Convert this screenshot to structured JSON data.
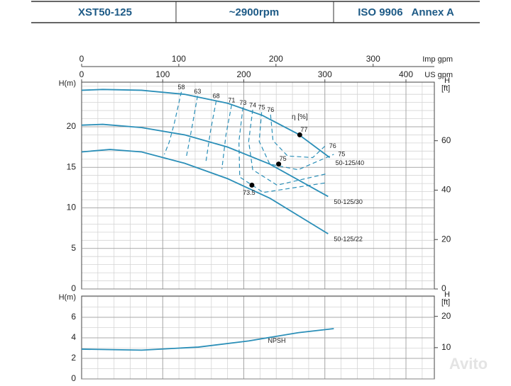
{
  "header": {
    "cells": [
      "XST50-125",
      "~2900rpm",
      "ISO 9906   Annex A"
    ]
  },
  "watermark": "Avito",
  "chart_data": [
    {
      "type": "line",
      "ylabel": "H(m)",
      "y2label": [
        "H",
        "[ft]"
      ],
      "xlabel": "US gpm",
      "x2label": "Imp gpm",
      "xlim": [
        0,
        435
      ],
      "xticks": [
        0,
        100,
        200,
        300,
        400
      ],
      "x2lim": [
        0,
        363
      ],
      "x2ticks": [
        0,
        100,
        200,
        300
      ],
      "ylim": [
        0,
        25.5
      ],
      "yticks": [
        0,
        5,
        10,
        15,
        20
      ],
      "y2lim": [
        0,
        83.7
      ],
      "y2ticks": [
        0,
        20,
        40,
        60
      ],
      "xgrid": [
        20,
        40,
        60,
        80,
        100,
        120,
        140,
        160,
        180,
        200,
        220,
        240,
        260,
        280,
        300,
        320,
        340,
        360,
        380,
        400,
        420
      ],
      "ygrid": [
        1,
        2,
        3,
        4,
        5,
        6,
        7,
        8,
        9,
        10,
        11,
        12,
        13,
        14,
        15,
        16,
        17,
        18,
        19,
        20,
        21,
        22,
        23,
        24,
        25
      ],
      "color": "#2b8fb8",
      "series": [
        {
          "name": "50-125/40",
          "x": [
            0,
            26,
            74,
            127,
            180,
            223,
            267,
            306
          ],
          "values": [
            24.5,
            24.6,
            24.5,
            24.0,
            22.9,
            21.4,
            19.1,
            16.2
          ]
        },
        {
          "name": "50-125/30",
          "x": [
            0,
            26,
            74,
            127,
            180,
            232,
            304
          ],
          "values": [
            20.2,
            20.3,
            19.9,
            19.0,
            17.5,
            15.4,
            11.4
          ]
        },
        {
          "name": "50-125/22",
          "x": [
            0,
            35,
            74,
            127,
            180,
            232,
            304
          ],
          "values": [
            16.9,
            17.2,
            16.9,
            15.5,
            13.6,
            11.2,
            6.8
          ]
        }
      ],
      "efficiency_label": "η [%]",
      "points": [
        {
          "label": "77",
          "x": 269,
          "y": 19.0
        },
        {
          "label": "75",
          "x": 243,
          "y": 15.4
        },
        {
          "label": "73.5",
          "x": 210,
          "y": 12.8
        }
      ],
      "efficiency_contours": [
        {
          "label": "58",
          "label_at": [
            "start"
          ],
          "x": [
            123,
            114,
            108,
            102
          ],
          "values": [
            24.3,
            20.3,
            18.1,
            16.6
          ]
        },
        {
          "label": "63",
          "label_at": [
            "start"
          ],
          "x": [
            143,
            136,
            129
          ],
          "values": [
            23.8,
            19.9,
            16.2
          ]
        },
        {
          "label": "68",
          "label_at": [
            "start"
          ],
          "x": [
            166,
            159,
            153
          ],
          "values": [
            23.2,
            19.5,
            15.5
          ]
        },
        {
          "label": "71",
          "label_at": [
            "start"
          ],
          "x": [
            185,
            178,
            173
          ],
          "values": [
            22.7,
            19.0,
            14.8
          ]
        },
        {
          "label": "73",
          "label_at": [
            "start"
          ],
          "x": [
            199,
            194,
            195,
            224,
            302
          ],
          "values": [
            22.4,
            18.2,
            13.8,
            11.9,
            13.1
          ]
        },
        {
          "label": "74",
          "label_at": [
            "start"
          ],
          "x": [
            211,
            206,
            211,
            241,
            302
          ],
          "values": [
            22.1,
            18.2,
            14.7,
            12.8,
            14.2
          ]
        },
        {
          "label": "75",
          "label_at": [
            "start",
            "end"
          ],
          "x": [
            222,
            219,
            232,
            267,
            311
          ],
          "values": [
            21.8,
            18.2,
            15.4,
            14.7,
            16.6
          ]
        },
        {
          "label": "76",
          "label_at": [
            "start",
            "end"
          ],
          "x": [
            233,
            236,
            254,
            285,
            300
          ],
          "values": [
            21.5,
            18.3,
            16.4,
            16.2,
            17.6
          ]
        }
      ]
    },
    {
      "type": "line",
      "ylabel": "H(m)",
      "y2label": [
        "H",
        "[ft]"
      ],
      "xlim": [
        0,
        435
      ],
      "xticks": [
        0,
        100,
        200,
        300,
        400
      ],
      "ylim": [
        0,
        8.07
      ],
      "yticks": [
        0,
        2,
        4,
        6
      ],
      "y2lim": [
        0,
        26.5
      ],
      "y2ticks": [
        10,
        20
      ],
      "xgrid": [
        20,
        40,
        60,
        80,
        100,
        120,
        140,
        160,
        180,
        200,
        220,
        240,
        260,
        280,
        300,
        320,
        340,
        360,
        380,
        400,
        420
      ],
      "ygrid": [
        1,
        2,
        3,
        4,
        5,
        6,
        7,
        8
      ],
      "color": "#2b8fb8",
      "series": [
        {
          "name": "NPSH",
          "x": [
            0,
            74,
            144,
            206,
            267,
            311
          ],
          "values": [
            2.9,
            2.8,
            3.1,
            3.7,
            4.5,
            4.9
          ]
        }
      ]
    }
  ]
}
